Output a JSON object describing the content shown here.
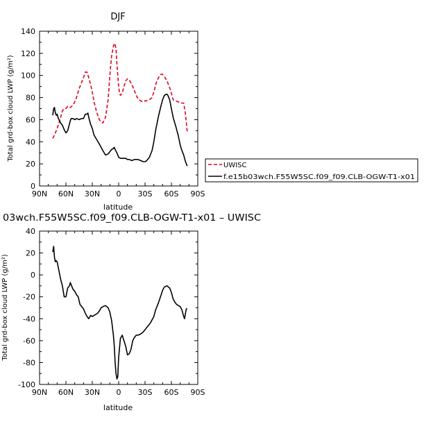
{
  "chart_data": [
    {
      "type": "line",
      "title": "DJF",
      "xlabel": "latitude",
      "ylabel": "Total grd-box cloud LWP (g/m²)",
      "x_tick_labels": [
        "90N",
        "60N",
        "30N",
        "0",
        "30S",
        "60S",
        "90S"
      ],
      "x_tick_values": [
        90,
        60,
        30,
        0,
        -30,
        -60,
        -90
      ],
      "xlim": [
        90,
        -90
      ],
      "ylim": [
        0,
        140
      ],
      "y_ticks": [
        0,
        20,
        40,
        60,
        80,
        100,
        120,
        140
      ],
      "legend_placement": "right",
      "series": [
        {
          "name": "UWISC",
          "color": "#e0001b",
          "dash": "dashed",
          "x": [
            75,
            72,
            70,
            68,
            66,
            64,
            62,
            60,
            58,
            55,
            52,
            50,
            48,
            45,
            42,
            40,
            38,
            36,
            34,
            32,
            30,
            28,
            25,
            22,
            20,
            18,
            15,
            12,
            10,
            8,
            6,
            5,
            4,
            3,
            2,
            0,
            -1,
            -2,
            -4,
            -6,
            -8,
            -10,
            -12,
            -15,
            -18,
            -20,
            -22,
            -25,
            -28,
            -30,
            -32,
            -35,
            -38,
            -40,
            -43,
            -46,
            -48,
            -50,
            -52,
            -55,
            -58,
            -60,
            -62,
            -65,
            -68,
            -70,
            -72,
            -74,
            -76,
            -77,
            -78
          ],
          "y": [
            43,
            48,
            52,
            57,
            62,
            68,
            70,
            70,
            72,
            71,
            73,
            76,
            80,
            88,
            94,
            98,
            103,
            103,
            98,
            92,
            85,
            76,
            67,
            60,
            58,
            57,
            62,
            78,
            100,
            118,
            126,
            129,
            128,
            124,
            110,
            90,
            84,
            82,
            84,
            90,
            95,
            97,
            96,
            92,
            86,
            82,
            79,
            77,
            76,
            77,
            77,
            78,
            80,
            85,
            94,
            99,
            101,
            101,
            99,
            95,
            89,
            84,
            78,
            77,
            76,
            75,
            75,
            75,
            65,
            57,
            49
          ]
        },
        {
          "name": "f.e15b03wch.F55W5SC.f09_f09.CLB-OGW-T1-x01",
          "color": "#000000",
          "dash": "solid",
          "x": [
            75,
            74,
            73,
            72,
            71,
            70,
            69,
            68,
            66,
            64,
            62,
            60,
            58,
            56,
            55,
            54,
            52,
            50,
            48,
            45,
            42,
            40,
            38,
            36,
            35,
            34,
            32,
            30,
            28,
            25,
            22,
            20,
            18,
            15,
            12,
            10,
            8,
            6,
            5,
            4,
            2,
            0,
            -2,
            -5,
            -8,
            -10,
            -12,
            -15,
            -18,
            -20,
            -22,
            -25,
            -28,
            -30,
            -32,
            -35,
            -38,
            -40,
            -42,
            -45,
            -48,
            -50,
            -52,
            -54,
            -55,
            -56,
            -58,
            -60,
            -62,
            -65,
            -68,
            -70,
            -72,
            -74,
            -76,
            -78
          ],
          "y": [
            64,
            70,
            71,
            66,
            64,
            65,
            62,
            60,
            57,
            55,
            51,
            48,
            50,
            56,
            59,
            61,
            61,
            60,
            61,
            60,
            61,
            61,
            65,
            65,
            66,
            62,
            56,
            52,
            46,
            42,
            38,
            35,
            32,
            28,
            29,
            31,
            33,
            34,
            35,
            33,
            30,
            26,
            25,
            25,
            25,
            24,
            24,
            23,
            24,
            24,
            24,
            23,
            22,
            22,
            23,
            26,
            32,
            40,
            50,
            62,
            72,
            78,
            82,
            83,
            83,
            82,
            78,
            70,
            62,
            54,
            45,
            37,
            32,
            28,
            22,
            18
          ]
        }
      ]
    },
    {
      "type": "line",
      "title": "03wch.F55W5SC.f09_f09.CLB-OGW-T1-x01 – UWISC",
      "xlabel": "latitude",
      "ylabel": "Total grd-box cloud LWP (g/m²)",
      "x_tick_labels": [
        "90N",
        "60N",
        "30N",
        "0",
        "30S",
        "60S",
        "90S"
      ],
      "x_tick_values": [
        90,
        60,
        30,
        0,
        -30,
        -60,
        -90
      ],
      "xlim": [
        90,
        -90
      ],
      "ylim": [
        -100,
        40
      ],
      "y_ticks": [
        -100,
        -80,
        -60,
        -40,
        -20,
        0,
        20,
        40
      ],
      "series": [
        {
          "name": "",
          "color": "#000000",
          "dash": "solid",
          "x": [
            75,
            74,
            73,
            72,
            71,
            70,
            69,
            68,
            67,
            66,
            64,
            62,
            60,
            58,
            56,
            55,
            54,
            52,
            50,
            48,
            46,
            44,
            42,
            40,
            38,
            36,
            34,
            32,
            30,
            28,
            26,
            24,
            22,
            20,
            18,
            15,
            12,
            10,
            8,
            6,
            5,
            4,
            3,
            2,
            1,
            0,
            -2,
            -4,
            -6,
            -8,
            -10,
            -12,
            -14,
            -16,
            -18,
            -20,
            -22,
            -25,
            -28,
            -30,
            -33,
            -36,
            -40,
            -42,
            -45,
            -48,
            -50,
            -52,
            -55,
            -58,
            -60,
            -62,
            -64,
            -66,
            -68,
            -70,
            -72,
            -74,
            -75,
            -76,
            -77,
            -78
          ],
          "y": [
            21,
            26,
            16,
            12,
            13,
            12,
            8,
            4,
            0,
            -4,
            -10,
            -20,
            -20,
            -12,
            -10,
            -7,
            -9,
            -13,
            -15,
            -18,
            -20,
            -27,
            -29,
            -31,
            -35,
            -38,
            -40,
            -37,
            -38,
            -37,
            -36,
            -35,
            -33,
            -30,
            -29,
            -28,
            -30,
            -34,
            -42,
            -55,
            -65,
            -80,
            -90,
            -95,
            -93,
            -75,
            -58,
            -55,
            -60,
            -65,
            -73,
            -72,
            -68,
            -60,
            -57,
            -55,
            -55,
            -54,
            -52,
            -50,
            -47,
            -44,
            -38,
            -32,
            -26,
            -19,
            -14,
            -11,
            -10,
            -12,
            -16,
            -22,
            -25,
            -27,
            -28,
            -29,
            -32,
            -38,
            -40,
            -35,
            -31,
            -31
          ]
        }
      ]
    }
  ]
}
